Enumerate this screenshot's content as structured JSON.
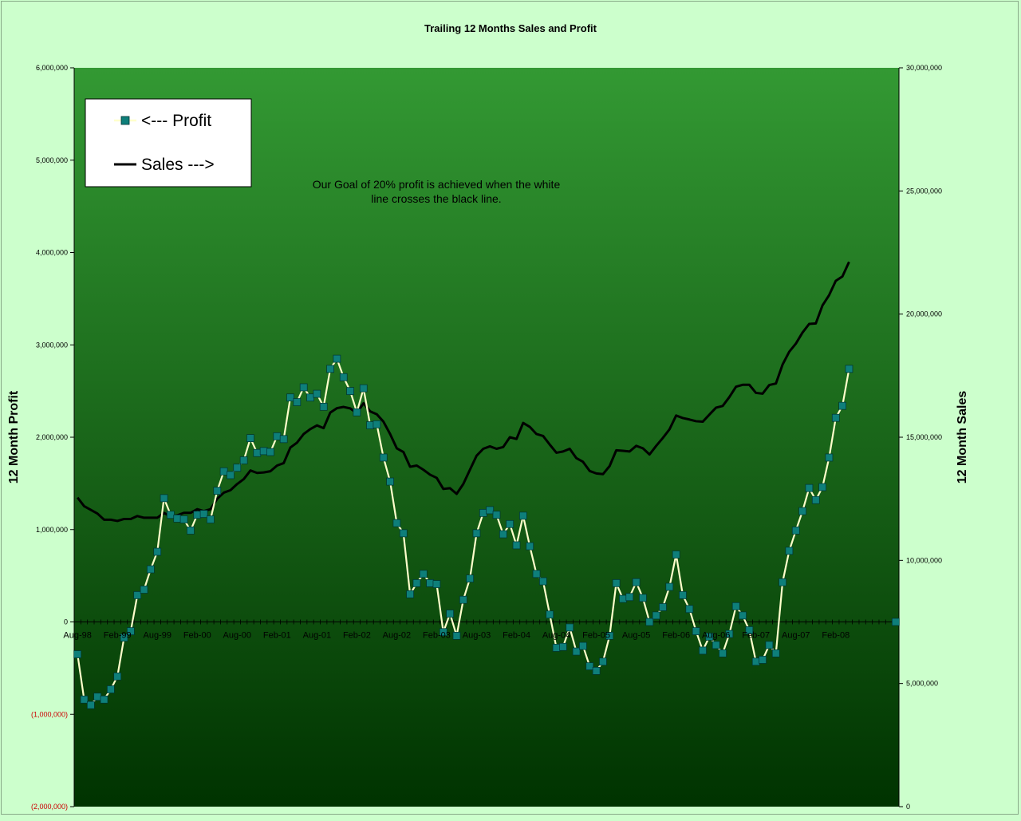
{
  "chart_data": {
    "type": "line",
    "title": "Trailing 12 Months Sales and Profit",
    "y_left_label": "12 Month Profit",
    "y_right_label": "12 Month Sales",
    "y_left_range": [
      -2000000,
      6000000
    ],
    "y_right_range": [
      0,
      30000000
    ],
    "y_left_ticks": [
      {
        "v": 6000000,
        "t": "6,000,000"
      },
      {
        "v": 5000000,
        "t": "5,000,000"
      },
      {
        "v": 4000000,
        "t": "4,000,000"
      },
      {
        "v": 3000000,
        "t": "3,000,000"
      },
      {
        "v": 2000000,
        "t": "2,000,000"
      },
      {
        "v": 1000000,
        "t": "1,000,000"
      },
      {
        "v": 0,
        "t": "0"
      },
      {
        "v": -1000000,
        "t": "(1,000,000)"
      },
      {
        "v": -2000000,
        "t": "(2,000,000)"
      }
    ],
    "y_right_ticks": [
      {
        "v": 30000000,
        "t": "30,000,000"
      },
      {
        "v": 25000000,
        "t": "25,000,000"
      },
      {
        "v": 20000000,
        "t": "20,000,000"
      },
      {
        "v": 15000000,
        "t": "15,000,000"
      },
      {
        "v": 10000000,
        "t": "10,000,000"
      },
      {
        "v": 5000000,
        "t": "5,000,000"
      },
      {
        "v": 0,
        "t": "0"
      }
    ],
    "x_categories_count": 124,
    "x_ticks": [
      {
        "i": 0,
        "t": "Aug-98"
      },
      {
        "i": 6,
        "t": "Feb-99"
      },
      {
        "i": 12,
        "t": "Aug-99"
      },
      {
        "i": 18,
        "t": "Feb-00"
      },
      {
        "i": 24,
        "t": "Aug-00"
      },
      {
        "i": 30,
        "t": "Feb-01"
      },
      {
        "i": 36,
        "t": "Aug-01"
      },
      {
        "i": 42,
        "t": "Feb-02"
      },
      {
        "i": 48,
        "t": "Aug-02"
      },
      {
        "i": 54,
        "t": "Feb-03"
      },
      {
        "i": 60,
        "t": "Aug-03"
      },
      {
        "i": 66,
        "t": "Feb-04"
      },
      {
        "i": 72,
        "t": "Aug-04"
      },
      {
        "i": 78,
        "t": "Feb-05"
      },
      {
        "i": 84,
        "t": "Aug-05"
      },
      {
        "i": 90,
        "t": "Feb-06"
      },
      {
        "i": 96,
        "t": "Aug-06"
      },
      {
        "i": 102,
        "t": "Feb-07"
      },
      {
        "i": 108,
        "t": "Aug-07"
      },
      {
        "i": 114,
        "t": "Feb-08"
      }
    ],
    "series": [
      {
        "name": "<--- Profit",
        "axis": "left",
        "color": "#ffffcc",
        "marker_color": "#0e7f7a",
        "points": [
          [
            0,
            -350000
          ],
          [
            1,
            -840000
          ],
          [
            2,
            -900000
          ],
          [
            3,
            -810000
          ],
          [
            4,
            -840000
          ],
          [
            5,
            -730000
          ],
          [
            6,
            -590000
          ],
          [
            7,
            -170000
          ],
          [
            8,
            -100000
          ],
          [
            9,
            290000
          ],
          [
            10,
            350000
          ],
          [
            11,
            570000
          ],
          [
            12,
            760000
          ],
          [
            13,
            1340000
          ],
          [
            14,
            1160000
          ],
          [
            15,
            1120000
          ],
          [
            16,
            1110000
          ],
          [
            17,
            990000
          ],
          [
            18,
            1160000
          ],
          [
            19,
            1170000
          ],
          [
            20,
            1110000
          ],
          [
            21,
            1420000
          ],
          [
            22,
            1630000
          ],
          [
            23,
            1590000
          ],
          [
            24,
            1670000
          ],
          [
            25,
            1750000
          ],
          [
            26,
            1990000
          ],
          [
            27,
            1830000
          ],
          [
            28,
            1850000
          ],
          [
            29,
            1840000
          ],
          [
            30,
            2010000
          ],
          [
            31,
            1980000
          ],
          [
            32,
            2430000
          ],
          [
            33,
            2380000
          ],
          [
            34,
            2540000
          ],
          [
            35,
            2430000
          ],
          [
            36,
            2470000
          ],
          [
            37,
            2330000
          ],
          [
            38,
            2740000
          ],
          [
            39,
            2850000
          ],
          [
            40,
            2650000
          ],
          [
            41,
            2500000
          ],
          [
            42,
            2270000
          ],
          [
            43,
            2530000
          ],
          [
            44,
            2130000
          ],
          [
            45,
            2140000
          ],
          [
            46,
            1780000
          ],
          [
            47,
            1520000
          ],
          [
            48,
            1070000
          ],
          [
            49,
            960000
          ],
          [
            50,
            300000
          ],
          [
            51,
            420000
          ],
          [
            52,
            520000
          ],
          [
            53,
            420000
          ],
          [
            54,
            410000
          ],
          [
            55,
            -110000
          ],
          [
            56,
            90000
          ],
          [
            57,
            -150000
          ],
          [
            58,
            240000
          ],
          [
            59,
            470000
          ],
          [
            60,
            960000
          ],
          [
            61,
            1180000
          ],
          [
            62,
            1210000
          ],
          [
            63,
            1160000
          ],
          [
            64,
            950000
          ],
          [
            65,
            1060000
          ],
          [
            66,
            830000
          ],
          [
            67,
            1150000
          ],
          [
            68,
            820000
          ],
          [
            69,
            520000
          ],
          [
            70,
            440000
          ],
          [
            71,
            80000
          ],
          [
            72,
            -280000
          ],
          [
            73,
            -270000
          ],
          [
            74,
            -60000
          ],
          [
            75,
            -320000
          ],
          [
            76,
            -260000
          ],
          [
            77,
            -480000
          ],
          [
            78,
            -530000
          ],
          [
            79,
            -430000
          ],
          [
            80,
            -150000
          ],
          [
            81,
            420000
          ],
          [
            82,
            250000
          ],
          [
            83,
            270000
          ],
          [
            84,
            430000
          ],
          [
            85,
            260000
          ],
          [
            86,
            0
          ],
          [
            87,
            70000
          ],
          [
            88,
            160000
          ],
          [
            89,
            380000
          ],
          [
            90,
            730000
          ],
          [
            91,
            290000
          ],
          [
            92,
            140000
          ],
          [
            93,
            -100000
          ],
          [
            94,
            -310000
          ],
          [
            95,
            -160000
          ],
          [
            96,
            -250000
          ],
          [
            97,
            -340000
          ],
          [
            98,
            -130000
          ],
          [
            99,
            170000
          ],
          [
            100,
            70000
          ],
          [
            101,
            -90000
          ],
          [
            102,
            -430000
          ],
          [
            103,
            -410000
          ],
          [
            104,
            -250000
          ],
          [
            105,
            -340000
          ],
          [
            106,
            430000
          ],
          [
            107,
            770000
          ],
          [
            108,
            990000
          ],
          [
            109,
            1200000
          ],
          [
            110,
            1450000
          ],
          [
            111,
            1320000
          ],
          [
            112,
            1460000
          ],
          [
            113,
            1780000
          ],
          [
            114,
            2210000
          ],
          [
            115,
            2340000
          ],
          [
            116,
            2740000
          ],
          [
            123,
            0
          ]
        ]
      },
      {
        "name": "Sales --->",
        "axis": "right",
        "color": "#000000",
        "points": [
          [
            0,
            12550000
          ],
          [
            1,
            12200000
          ],
          [
            2,
            12050000
          ],
          [
            3,
            11900000
          ],
          [
            4,
            11650000
          ],
          [
            5,
            11650000
          ],
          [
            6,
            11600000
          ],
          [
            7,
            11680000
          ],
          [
            8,
            11680000
          ],
          [
            9,
            11800000
          ],
          [
            10,
            11730000
          ],
          [
            11,
            11730000
          ],
          [
            12,
            11730000
          ],
          [
            13,
            11930000
          ],
          [
            14,
            11780000
          ],
          [
            15,
            11830000
          ],
          [
            16,
            11930000
          ],
          [
            17,
            11930000
          ],
          [
            18,
            12080000
          ],
          [
            19,
            12000000
          ],
          [
            20,
            12080000
          ],
          [
            21,
            12500000
          ],
          [
            22,
            12750000
          ],
          [
            23,
            12850000
          ],
          [
            24,
            13100000
          ],
          [
            25,
            13300000
          ],
          [
            26,
            13650000
          ],
          [
            27,
            13550000
          ],
          [
            28,
            13570000
          ],
          [
            29,
            13620000
          ],
          [
            30,
            13850000
          ],
          [
            31,
            13950000
          ],
          [
            32,
            14580000
          ],
          [
            33,
            14780000
          ],
          [
            34,
            15130000
          ],
          [
            35,
            15330000
          ],
          [
            36,
            15480000
          ],
          [
            37,
            15370000
          ],
          [
            38,
            16000000
          ],
          [
            39,
            16180000
          ],
          [
            40,
            16230000
          ],
          [
            41,
            16170000
          ],
          [
            42,
            15980000
          ],
          [
            43,
            16380000
          ],
          [
            44,
            16050000
          ],
          [
            45,
            15930000
          ],
          [
            46,
            15630000
          ],
          [
            47,
            15130000
          ],
          [
            48,
            14550000
          ],
          [
            49,
            14400000
          ],
          [
            50,
            13800000
          ],
          [
            51,
            13850000
          ],
          [
            52,
            13680000
          ],
          [
            53,
            13480000
          ],
          [
            54,
            13350000
          ],
          [
            55,
            12900000
          ],
          [
            56,
            12930000
          ],
          [
            57,
            12700000
          ],
          [
            58,
            13100000
          ],
          [
            59,
            13680000
          ],
          [
            60,
            14250000
          ],
          [
            61,
            14530000
          ],
          [
            62,
            14630000
          ],
          [
            63,
            14530000
          ],
          [
            64,
            14600000
          ],
          [
            65,
            15000000
          ],
          [
            66,
            14930000
          ],
          [
            67,
            15580000
          ],
          [
            68,
            15420000
          ],
          [
            69,
            15130000
          ],
          [
            70,
            15050000
          ],
          [
            71,
            14700000
          ],
          [
            72,
            14370000
          ],
          [
            73,
            14420000
          ],
          [
            74,
            14530000
          ],
          [
            75,
            14150000
          ],
          [
            76,
            14000000
          ],
          [
            77,
            13630000
          ],
          [
            78,
            13530000
          ],
          [
            79,
            13500000
          ],
          [
            80,
            13830000
          ],
          [
            81,
            14470000
          ],
          [
            82,
            14450000
          ],
          [
            83,
            14420000
          ],
          [
            84,
            14650000
          ],
          [
            85,
            14550000
          ],
          [
            86,
            14300000
          ],
          [
            87,
            14650000
          ],
          [
            88,
            14970000
          ],
          [
            89,
            15320000
          ],
          [
            90,
            15880000
          ],
          [
            91,
            15780000
          ],
          [
            92,
            15720000
          ],
          [
            93,
            15650000
          ],
          [
            94,
            15630000
          ],
          [
            95,
            15920000
          ],
          [
            96,
            16200000
          ],
          [
            97,
            16270000
          ],
          [
            98,
            16630000
          ],
          [
            99,
            17050000
          ],
          [
            100,
            17130000
          ],
          [
            101,
            17130000
          ],
          [
            102,
            16800000
          ],
          [
            103,
            16770000
          ],
          [
            104,
            17120000
          ],
          [
            105,
            17180000
          ],
          [
            106,
            17950000
          ],
          [
            107,
            18470000
          ],
          [
            108,
            18800000
          ],
          [
            109,
            19250000
          ],
          [
            110,
            19600000
          ],
          [
            111,
            19620000
          ],
          [
            112,
            20350000
          ],
          [
            113,
            20770000
          ],
          [
            114,
            21350000
          ],
          [
            115,
            21530000
          ],
          [
            116,
            22120000
          ]
        ]
      }
    ],
    "legend": {
      "placement": "top-left",
      "items": [
        {
          "label": "<--- Profit",
          "marker": "square-on-line"
        },
        {
          "label": "Sales --->",
          "marker": "line"
        }
      ]
    },
    "annotation_lines": [
      "Our Goal of 20% profit is achieved when the white",
      "line crosses the black line."
    ],
    "colors": {
      "page_background": "#ccffcc",
      "plot_gradient_top": "#339933",
      "plot_gradient_bottom": "#003300",
      "negative_tick_label": "#cc0000",
      "axis": "#000000"
    },
    "grid": false
  }
}
